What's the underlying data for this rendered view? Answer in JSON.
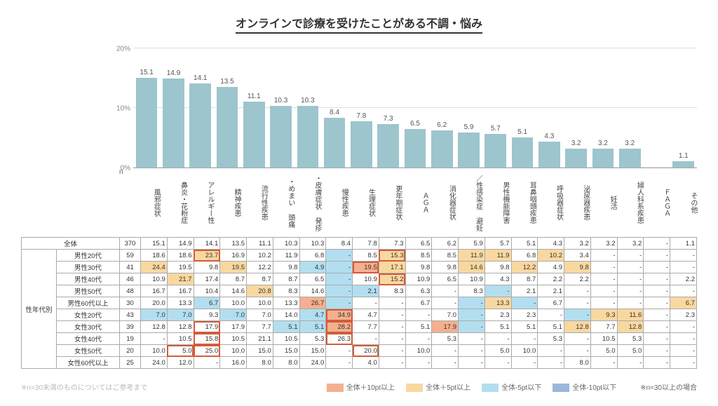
{
  "title": "オンラインで診療を受けたことがある不調・悩み",
  "chart": {
    "ymax": 20,
    "yticks": [
      0,
      10,
      20
    ],
    "ytick_labels": [
      "0%",
      "10%",
      "20%"
    ],
    "bar_color": "#9cc5cd",
    "grid_color": "#dddddd"
  },
  "categories": [
    "風邪症状",
    "鼻炎・花粉症",
    "アレルギー性",
    "精神疾患",
    "流行性疾患",
    "・めまい 頭痛",
    "・皮膚症状 発疹",
    "慢性疾患",
    "生理症状",
    "更年期症状",
    "ＡＧＡ",
    "消化器症状",
    "／性感染症 避妊",
    "男性機能障害",
    "耳鼻咽頭疾患",
    "呼吸器症状",
    "泌尿器疾患",
    "妊活",
    "婦人科系疾患",
    "ＦＡＧＡ",
    "その他"
  ],
  "overall": {
    "label": "全体",
    "n": 370,
    "values": [
      15.1,
      14.9,
      14.1,
      13.5,
      11.1,
      10.3,
      10.3,
      8.4,
      7.8,
      7.3,
      6.5,
      6.2,
      5.9,
      5.7,
      5.1,
      4.3,
      3.2,
      3.2,
      3.2,
      null,
      1.1
    ]
  },
  "group_label": "性年代別",
  "rows": [
    {
      "label": "男性20代",
      "n": 59,
      "v": [
        18.6,
        18.6,
        [
          23.7,
          "p5",
          "r"
        ],
        16.9,
        10.2,
        11.9,
        6.8,
        [
          null,
          "m5"
        ],
        8.5,
        [
          15.3,
          "p5",
          "r"
        ],
        8.5,
        8.5,
        [
          11.9,
          "p5"
        ],
        [
          11.9,
          "p5"
        ],
        6.8,
        [
          10.2,
          "p5"
        ],
        3.4,
        null,
        null,
        null,
        null
      ]
    },
    {
      "label": "男性30代",
      "n": 41,
      "v": [
        [
          24.4,
          "p5"
        ],
        19.5,
        9.8,
        [
          19.5,
          "p5"
        ],
        12.2,
        9.8,
        [
          4.9,
          "m5"
        ],
        [
          null,
          "m5"
        ],
        [
          19.5,
          "p10",
          "r"
        ],
        [
          17.1,
          "p5"
        ],
        9.8,
        9.8,
        [
          14.6,
          "p5"
        ],
        9.8,
        [
          12.2,
          "p5"
        ],
        4.9,
        [
          9.8,
          "p5"
        ],
        null,
        null,
        null,
        null
      ]
    },
    {
      "label": "男性40代",
      "n": 46,
      "v": [
        10.9,
        [
          21.7,
          "p5"
        ],
        17.4,
        8.7,
        8.7,
        8.7,
        6.5,
        [
          null,
          "m5"
        ],
        10.9,
        [
          15.2,
          "p5",
          "r"
        ],
        10.9,
        6.5,
        10.9,
        4.3,
        8.7,
        2.2,
        2.2,
        null,
        null,
        null,
        2.2
      ]
    },
    {
      "label": "男性50代",
      "n": 48,
      "v": [
        16.7,
        16.7,
        10.4,
        14.6,
        [
          20.8,
          "p5"
        ],
        8.3,
        14.6,
        [
          null,
          "m5"
        ],
        [
          2.1,
          "m5"
        ],
        8.3,
        6.3,
        null,
        8.3,
        [
          null,
          "m5"
        ],
        2.1,
        2.1,
        null,
        null,
        null,
        null,
        null
      ]
    },
    {
      "label": "男性60代以上",
      "n": 30,
      "v": [
        20.0,
        13.3,
        [
          6.7,
          "m5"
        ],
        10.0,
        10.0,
        13.3,
        [
          26.7,
          "p10"
        ],
        [
          null,
          "m5"
        ],
        null,
        null,
        6.7,
        null,
        [
          null,
          "m5"
        ],
        [
          13.3,
          "p5"
        ],
        [
          null,
          "m5"
        ],
        6.7,
        null,
        null,
        null,
        null,
        [
          6.7,
          "p5"
        ]
      ]
    },
    {
      "label": "女性20代",
      "n": 43,
      "v": [
        [
          7.0,
          "m5"
        ],
        [
          7.0,
          "m5"
        ],
        9.3,
        [
          7.0,
          "m5"
        ],
        7.0,
        14.0,
        [
          4.7,
          "m5"
        ],
        [
          34.9,
          "p10",
          "r"
        ],
        4.7,
        null,
        null,
        7.0,
        [
          null,
          "m5"
        ],
        2.3,
        2.3,
        null,
        [
          null,
          "m5"
        ],
        [
          9.3,
          "p5"
        ],
        [
          11.6,
          "p5"
        ],
        null,
        2.3
      ]
    },
    {
      "label": "女性30代",
      "n": 39,
      "v": [
        12.8,
        12.8,
        [
          17.9,
          null,
          "r"
        ],
        17.9,
        7.7,
        [
          5.1,
          "m5"
        ],
        [
          5.1,
          "m5"
        ],
        [
          28.2,
          "p10",
          "r"
        ],
        7.7,
        null,
        5.1,
        [
          17.9,
          "p10"
        ],
        [
          null,
          "m5"
        ],
        5.1,
        5.1,
        5.1,
        [
          12.8,
          "p5"
        ],
        7.7,
        [
          12.8,
          "p5"
        ],
        null,
        null
      ]
    },
    {
      "label": "女性40代",
      "n": 19,
      "v": [
        null,
        10.5,
        [
          15.8,
          null,
          "r"
        ],
        10.5,
        21.1,
        10.5,
        5.3,
        [
          26.3,
          null,
          "r"
        ],
        null,
        null,
        null,
        5.3,
        null,
        null,
        null,
        5.3,
        null,
        10.5,
        5.3,
        null,
        null
      ]
    },
    {
      "label": "女性50代",
      "n": 20,
      "v": [
        10.0,
        [
          5.0,
          null,
          "r"
        ],
        [
          25.0,
          null,
          "r"
        ],
        10.0,
        15.0,
        15.0,
        15.0,
        null,
        [
          20.0,
          null,
          "r"
        ],
        null,
        10.0,
        null,
        null,
        5.0,
        10.0,
        null,
        null,
        5.0,
        5.0,
        null,
        null
      ]
    },
    {
      "label": "女性60代以上",
      "n": 25,
      "v": [
        24.0,
        12.0,
        null,
        16.0,
        8.0,
        8.0,
        24.0,
        null,
        4.0,
        null,
        null,
        null,
        null,
        null,
        null,
        null,
        8.0,
        null,
        null,
        null,
        null
      ]
    }
  ],
  "legend": {
    "note_left": "※n=30未満のものについてはご参考まで",
    "items": [
      {
        "swatch": "#f4b08e",
        "label": "全体＋10pt以上"
      },
      {
        "swatch": "#f9d8a0",
        "label": "全体＋5pt以上"
      },
      {
        "swatch": "#b3def0",
        "label": "全体-5pt以下"
      },
      {
        "swatch": "#9bb7dc",
        "label": "全体-10pt以下"
      }
    ],
    "note_right": "※n=30以上の場合"
  },
  "col_n_label": "n"
}
